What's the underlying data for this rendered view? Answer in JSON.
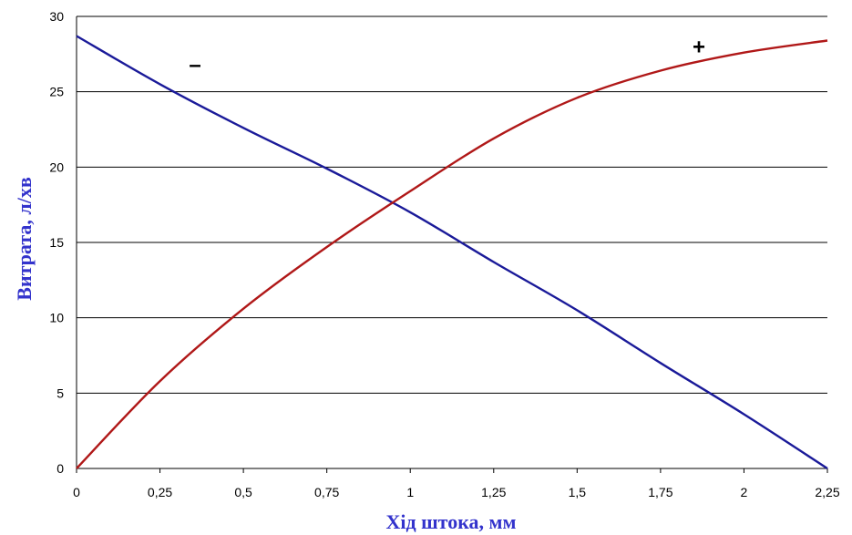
{
  "chart_data": {
    "type": "line",
    "title": "",
    "xlabel": "Хід штока, мм",
    "ylabel": "Витрата, л/хв",
    "xlim": [
      0,
      2.25
    ],
    "ylim": [
      0,
      30
    ],
    "x_ticks": [
      "0",
      "0,25",
      "0,5",
      "0,75",
      "1",
      "1,25",
      "1,5",
      "1,75",
      "2",
      "2,25"
    ],
    "y_ticks": [
      "0",
      "5",
      "10",
      "15",
      "20",
      "25",
      "30"
    ],
    "grid": "horizontal",
    "colors": {
      "decreasing": "#1a1a99",
      "increasing": "#b01818",
      "grid": "#000000"
    },
    "series": [
      {
        "marker_label": "–",
        "color": "#1a1a99",
        "x": [
          0,
          0.25,
          0.5,
          0.75,
          1,
          1.25,
          1.5,
          1.75,
          2,
          2.25
        ],
        "y": [
          28.7,
          25.5,
          22.6,
          19.9,
          17.0,
          13.7,
          10.5,
          7.0,
          3.6,
          0
        ]
      },
      {
        "marker_label": "+",
        "color": "#b01818",
        "x": [
          0,
          0.25,
          0.5,
          0.75,
          1,
          1.25,
          1.5,
          1.75,
          2,
          2.25
        ],
        "y": [
          0,
          5.8,
          10.6,
          14.7,
          18.4,
          21.9,
          24.6,
          26.4,
          27.6,
          28.4
        ]
      }
    ]
  }
}
